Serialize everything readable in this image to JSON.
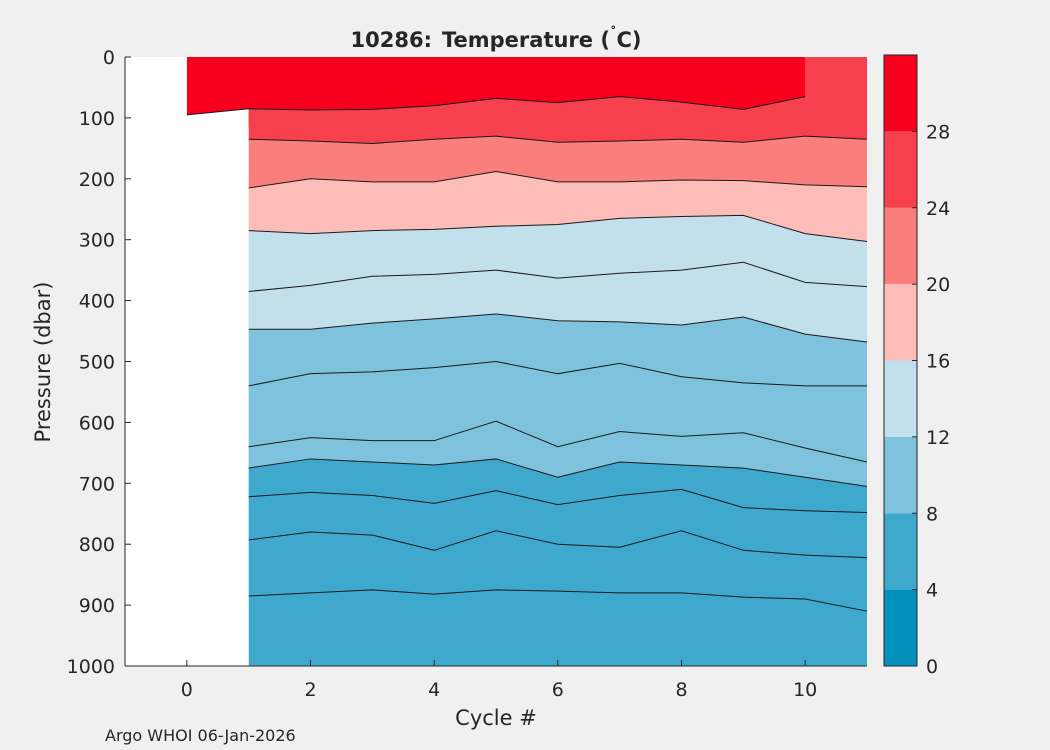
{
  "chart_data": {
    "type": "contourf",
    "title_id": "10286:",
    "title_text": "Temperature (",
    "title_degree": "˚",
    "title_unit": "C)",
    "xlabel": "Cycle #",
    "ylabel": "Pressure (dbar)",
    "footer": "Argo WHOI 06-Jan-2026",
    "xlim": [
      -1,
      11
    ],
    "ylim": [
      1000,
      0
    ],
    "x_ticks": [
      "0",
      "2",
      "4",
      "6",
      "8",
      "10"
    ],
    "x_tick_values": [
      0,
      2,
      4,
      6,
      8,
      10
    ],
    "y_ticks": [
      "0",
      "100",
      "200",
      "300",
      "400",
      "500",
      "600",
      "700",
      "800",
      "900",
      "1000"
    ],
    "y_tick_values": [
      0,
      100,
      200,
      300,
      400,
      500,
      600,
      700,
      800,
      900,
      1000
    ],
    "colorbar": {
      "ticks": [
        "0",
        "4",
        "8",
        "12",
        "16",
        "20",
        "24",
        "28"
      ],
      "tick_values": [
        0,
        4,
        8,
        12,
        16,
        20,
        24,
        28
      ],
      "range": [
        0,
        32
      ],
      "bands": [
        {
          "from": 0,
          "to": 4,
          "color": "#0490bc"
        },
        {
          "from": 4,
          "to": 8,
          "color": "#3fa8cd"
        },
        {
          "from": 8,
          "to": 12,
          "color": "#7ec2dd"
        },
        {
          "from": 12,
          "to": 16,
          "color": "#c2e0ec"
        },
        {
          "from": 16,
          "to": 20,
          "color": "#fcbcb8"
        },
        {
          "from": 20,
          "to": 24,
          "color": "#f97f7d"
        },
        {
          "from": 24,
          "to": 28,
          "color": "#f6404d"
        },
        {
          "from": 28,
          "to": 32,
          "color": "#f8001d"
        }
      ]
    },
    "data_coverage": [
      {
        "cycle_start": 0,
        "cycle_end": 1,
        "pressure_min": 0,
        "pressure_max": 115
      },
      {
        "cycle_start": 1,
        "cycle_end": 11,
        "pressure_min": 0,
        "pressure_max": 1000
      }
    ],
    "cycles": [
      0,
      1,
      2,
      3,
      4,
      5,
      6,
      7,
      8,
      9,
      10,
      11
    ],
    "isotherms": [
      {
        "level": 28,
        "fill": "#f8001d",
        "pressures": [
          95,
          85,
          87,
          86,
          80,
          68,
          75,
          65,
          74,
          86,
          65,
          null
        ]
      },
      {
        "level": 26,
        "fill": "#f6404d",
        "pressures": [
          null,
          135,
          138,
          142,
          135,
          130,
          140,
          138,
          135,
          140,
          130,
          135
        ]
      },
      {
        "level": 20,
        "fill": "#f97f7d",
        "pressures": [
          null,
          215,
          200,
          205,
          205,
          188,
          205,
          205,
          202,
          203,
          210,
          213
        ]
      },
      {
        "level": 18,
        "fill": "#fcbcb8",
        "pressures": [
          null,
          285,
          290,
          285,
          283,
          278,
          275,
          265,
          262,
          260,
          290,
          303
        ]
      },
      {
        "level": 16,
        "fill": "#c2e0ec",
        "pressures": [
          null,
          385,
          375,
          360,
          357,
          350,
          363,
          355,
          350,
          337,
          370,
          377
        ]
      },
      {
        "level": 14,
        "fill": "#c2e0ec",
        "pressures": [
          null,
          447,
          447,
          437,
          430,
          422,
          433,
          435,
          440,
          427,
          455,
          468
        ]
      },
      {
        "level": 12,
        "fill": "#7ec2dd",
        "pressures": [
          null,
          540,
          520,
          517,
          510,
          500,
          520,
          503,
          525,
          535,
          540,
          540
        ]
      },
      {
        "level": 10,
        "fill": "#7ec2dd",
        "pressures": [
          null,
          640,
          625,
          630,
          630,
          598,
          640,
          615,
          623,
          617,
          642,
          665
        ]
      },
      {
        "level": 9,
        "fill": "#7ec2dd",
        "pressures": [
          null,
          675,
          660,
          665,
          670,
          660,
          690,
          665,
          670,
          675,
          690,
          705
        ]
      },
      {
        "level": 8,
        "fill": "#3fa8cd",
        "pressures": [
          null,
          722,
          715,
          720,
          733,
          712,
          735,
          720,
          710,
          740,
          745,
          748
        ]
      },
      {
        "level": 6,
        "fill": "#3fa8cd",
        "pressures": [
          null,
          793,
          780,
          785,
          810,
          778,
          800,
          805,
          778,
          810,
          818,
          822
        ]
      },
      {
        "level": 5,
        "fill": "#3fa8cd",
        "pressures": [
          null,
          885,
          880,
          875,
          882,
          875,
          877,
          880,
          880,
          887,
          890,
          910
        ]
      }
    ]
  }
}
